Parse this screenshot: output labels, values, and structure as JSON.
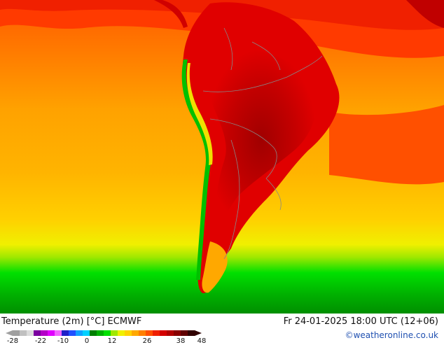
{
  "map": {
    "title": "Temperature (2m) [°C] ECMWF",
    "datetime": "Fr 24-01-2025 18:00 UTC (12+06)",
    "credit": "©weatheronline.co.uk"
  },
  "legend": {
    "ticks": [
      "-28",
      "-22",
      "-10",
      "0",
      "12",
      "26",
      "38",
      "48"
    ],
    "colors": [
      "#a0a0a0",
      "#c0c0c0",
      "#dcdcdc",
      "#7a00a0",
      "#b400c8",
      "#e000ff",
      "#f064ff",
      "#2020c8",
      "#2050ff",
      "#10a0ff",
      "#00d0ff",
      "#007f00",
      "#00b000",
      "#00e000",
      "#a0e800",
      "#f0f000",
      "#ffd200",
      "#ffa800",
      "#ff8000",
      "#ff5000",
      "#f02000",
      "#d40000",
      "#b00000",
      "#880000",
      "#600000",
      "#300000"
    ]
  },
  "palette": {
    "ocean_warm": "#ff7a00",
    "ocean_mid": "#ffa000",
    "ocean_cool": "#ffc800",
    "land_hot": "#e00000",
    "land_very_hot": "#b80000",
    "south_cold": "#00c000"
  }
}
